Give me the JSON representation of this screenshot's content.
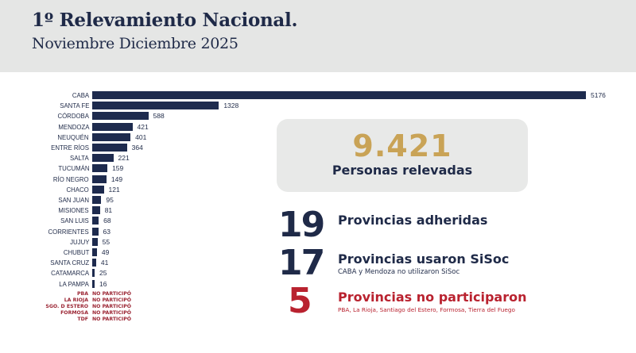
{
  "header": {
    "title": "1º Relevamiento Nacional.",
    "subtitle": "Noviembre Diciembre 2025"
  },
  "chart_data": {
    "type": "bar",
    "orientation": "horizontal",
    "title": "1º Relevamiento Nacional. Noviembre Diciembre 2025",
    "xlabel": "",
    "ylabel": "",
    "grid": false,
    "legend": false,
    "bar_color": "#1e2b4e",
    "categories": [
      "CABA",
      "SANTA FE",
      "CÓRDOBA",
      "MENDOZA",
      "NEUQUÉN",
      "ENTRE RÍOS",
      "SALTA",
      "TUCUMÁN",
      "RÍO NEGRO",
      "CHACO",
      "SAN JUAN",
      "MISIONES",
      "SAN LUIS",
      "CORRIENTES",
      "JUJUY",
      "CHUBUT",
      "SANTA CRUZ",
      "CATAMARCA",
      "LA PAMPA"
    ],
    "values": [
      5176,
      1328,
      588,
      421,
      401,
      364,
      221,
      159,
      149,
      121,
      95,
      81,
      68,
      63,
      55,
      49,
      41,
      25,
      16
    ],
    "not_participated": [
      {
        "label": "PBA",
        "status": "NO PARTICIPÓ"
      },
      {
        "label": "LA RIOJA",
        "status": "NO PARTICIPÓ"
      },
      {
        "label": "SGO. D ESTERO",
        "status": "NO PARTICIPÓ"
      },
      {
        "label": "FORMOSA",
        "status": "NO PARTICIPÓ"
      },
      {
        "label": "TDF",
        "status": "NO PARTICIPÓ"
      }
    ]
  },
  "summary": {
    "total": {
      "value": "9.421",
      "label": "Personas relevadas"
    },
    "stats": [
      {
        "value": "19",
        "label": "Provincias adheridas",
        "note": ""
      },
      {
        "value": "17",
        "label": "Provincias usaron SiSoc",
        "note": "CABA y Mendoza no utilizaron SiSoc"
      },
      {
        "value": "5",
        "label": "Provincias no participaron",
        "note": "PBA, La Rioja, Santiago del Estero, Formosa, Tierra del Fuego"
      }
    ]
  },
  "colors": {
    "navy": "#1f2a48",
    "gold": "#c9a356",
    "red": "#b9222f",
    "header_bg": "#e5e6e5"
  }
}
